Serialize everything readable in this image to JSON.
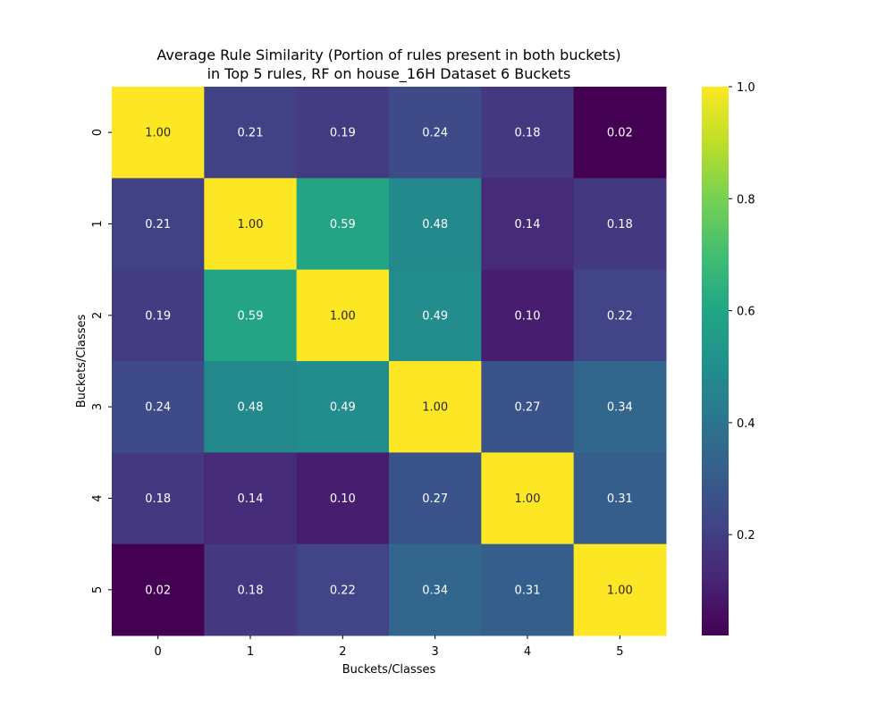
{
  "chart_data": {
    "type": "heatmap",
    "title_line1": "Average Rule Similarity (Portion of rules present in both buckets)",
    "title_line2": "in Top 5 rules, RF on house_16H Dataset 6 Buckets",
    "xlabel": "Buckets/Classes",
    "ylabel": "Buckets/Classes",
    "x_categories": [
      "0",
      "1",
      "2",
      "3",
      "4",
      "5"
    ],
    "y_categories": [
      "0",
      "1",
      "2",
      "3",
      "4",
      "5"
    ],
    "values": [
      [
        1.0,
        0.21,
        0.19,
        0.24,
        0.18,
        0.02
      ],
      [
        0.21,
        1.0,
        0.59,
        0.48,
        0.14,
        0.18
      ],
      [
        0.19,
        0.59,
        1.0,
        0.49,
        0.1,
        0.22
      ],
      [
        0.24,
        0.48,
        0.49,
        1.0,
        0.27,
        0.34
      ],
      [
        0.18,
        0.14,
        0.1,
        0.27,
        1.0,
        0.31
      ],
      [
        0.02,
        0.18,
        0.22,
        0.34,
        0.31,
        1.0
      ]
    ],
    "value_format": "0.00",
    "colormap": "viridis",
    "colorbar_range": [
      0.02,
      1.0
    ],
    "colorbar_ticks": [
      "0.2",
      "0.4",
      "0.6",
      "0.8",
      "1.0"
    ],
    "colors": {
      "low": "#440154",
      "high": "#fde725"
    }
  }
}
